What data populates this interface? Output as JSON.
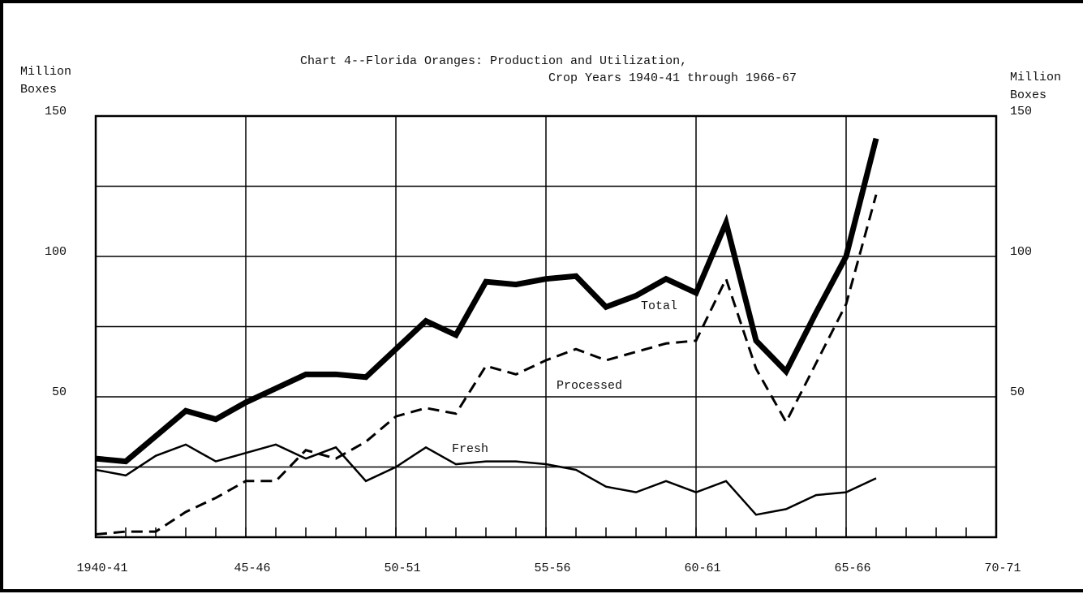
{
  "chart_data": {
    "type": "line",
    "title": "Chart 4--Florida Oranges:  Production and Utilization,",
    "subtitle": "Crop Years 1940-41 through 1966-67",
    "ylabel": [
      "Million",
      "Boxes"
    ],
    "y2label": [
      "Million",
      "Boxes"
    ],
    "x": [
      1940,
      1941,
      1942,
      1943,
      1944,
      1945,
      1946,
      1947,
      1948,
      1949,
      1950,
      1951,
      1952,
      1953,
      1954,
      1955,
      1956,
      1957,
      1958,
      1959,
      1960,
      1961,
      1962,
      1963,
      1964,
      1965,
      1966
    ],
    "xlim": [
      1940,
      1970
    ],
    "xticks": [
      {
        "value": 1940,
        "label": "1940-41"
      },
      {
        "value": 1945,
        "label": "45-46"
      },
      {
        "value": 1950,
        "label": "50-51"
      },
      {
        "value": 1955,
        "label": "55-56"
      },
      {
        "value": 1960,
        "label": "60-61"
      },
      {
        "value": 1965,
        "label": "65-66"
      },
      {
        "value": 1970,
        "label": "70-71"
      }
    ],
    "ylim": [
      0,
      150
    ],
    "yticks": [
      50,
      100,
      150
    ],
    "y2lim": [
      0,
      150
    ],
    "y2ticks": [
      50,
      100,
      150
    ],
    "ygrid": [
      25,
      50,
      75,
      100,
      125
    ],
    "series": [
      {
        "name": "Total",
        "color": "#000000",
        "style": "thick",
        "values": [
          28,
          27,
          36,
          45,
          42,
          48,
          53,
          58,
          58,
          57,
          67,
          77,
          72,
          91,
          90,
          92,
          93,
          82,
          86,
          92,
          87,
          112,
          70,
          59,
          80,
          100,
          142
        ]
      },
      {
        "name": "Processed",
        "color": "#000000",
        "style": "dashed",
        "values": [
          1,
          2,
          2,
          9,
          14,
          20,
          20,
          31,
          28,
          34,
          43,
          46,
          44,
          61,
          58,
          63,
          67,
          63,
          66,
          69,
          70,
          92,
          60,
          41,
          62,
          83,
          122
        ]
      },
      {
        "name": "Fresh",
        "color": "#000000",
        "style": "solid",
        "values": [
          24,
          22,
          29,
          33,
          27,
          30,
          33,
          28,
          32,
          20,
          25,
          32,
          26,
          27,
          27,
          26,
          24,
          18,
          16,
          20,
          16,
          20,
          8,
          10,
          15,
          16,
          21
        ]
      }
    ]
  }
}
